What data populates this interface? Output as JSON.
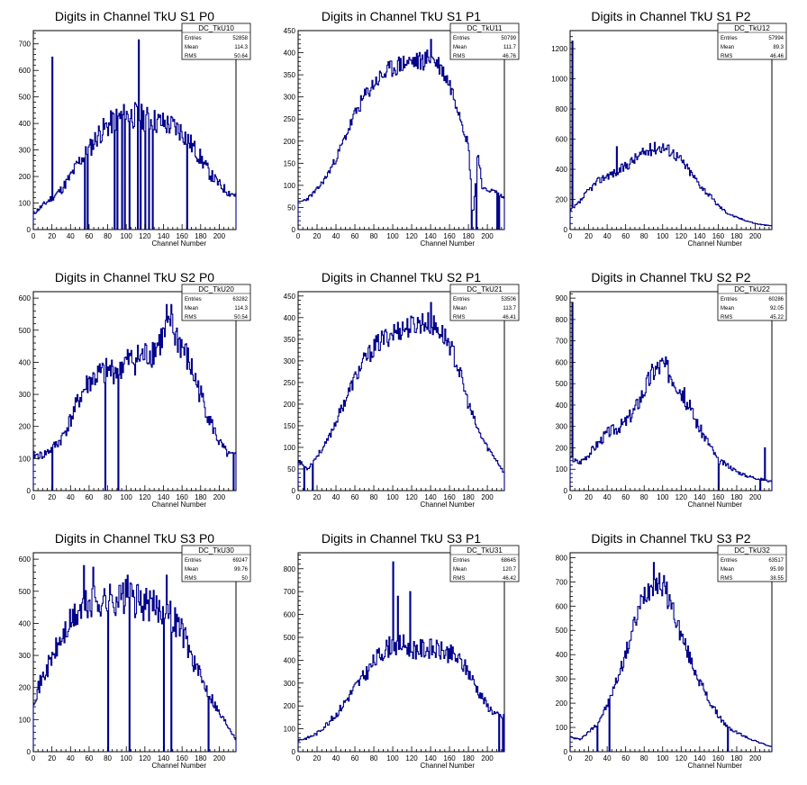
{
  "chart_data": [
    {
      "type": "histogram",
      "title": "Digits in Channel TkU S1 P0",
      "xlabel": "Channel Number",
      "ylabel": "",
      "xlim": [
        0,
        218
      ],
      "ylim": [
        0,
        750
      ],
      "xticks": [
        0,
        20,
        40,
        60,
        80,
        100,
        120,
        140,
        160,
        180,
        200
      ],
      "yticks": [
        100,
        200,
        300,
        400,
        500,
        600,
        700
      ],
      "stats": {
        "name": "DC_TkU10",
        "entries": "52858",
        "mean": "114.3",
        "rms": "50.64"
      },
      "anchors": [
        [
          0,
          60
        ],
        [
          10,
          90
        ],
        [
          20,
          120
        ],
        [
          30,
          150
        ],
        [
          40,
          200
        ],
        [
          50,
          260
        ],
        [
          60,
          300
        ],
        [
          70,
          360
        ],
        [
          80,
          390
        ],
        [
          90,
          420
        ],
        [
          100,
          430
        ],
        [
          110,
          430
        ],
        [
          120,
          420
        ],
        [
          130,
          410
        ],
        [
          140,
          400
        ],
        [
          150,
          390
        ],
        [
          160,
          370
        ],
        [
          170,
          320
        ],
        [
          180,
          270
        ],
        [
          190,
          210
        ],
        [
          200,
          170
        ],
        [
          210,
          140
        ],
        [
          218,
          130
        ]
      ],
      "spikes": [
        [
          20,
          650
        ],
        [
          113,
          715
        ]
      ],
      "dips": [
        [
          55,
          0
        ],
        [
          58,
          0
        ],
        [
          87,
          0
        ],
        [
          90,
          0
        ],
        [
          95,
          0
        ],
        [
          98,
          0
        ],
        [
          103,
          0
        ],
        [
          112,
          0
        ],
        [
          115,
          0
        ],
        [
          120,
          0
        ],
        [
          124,
          0
        ],
        [
          128,
          0
        ],
        [
          165,
          0
        ]
      ],
      "noise": 0.12,
      "seed": 11
    },
    {
      "type": "histogram",
      "title": "Digits in Channel TkU S1 P1",
      "xlabel": "Channel Number",
      "ylabel": "",
      "xlim": [
        0,
        218
      ],
      "ylim": [
        0,
        450
      ],
      "xticks": [
        0,
        20,
        40,
        60,
        80,
        100,
        120,
        140,
        160,
        180,
        200
      ],
      "yticks": [
        50,
        100,
        150,
        200,
        250,
        300,
        350,
        400,
        450
      ],
      "stats": {
        "name": "DC_TkU11",
        "entries": "50799",
        "mean": "111.7",
        "rms": "46.76"
      },
      "anchors": [
        [
          0,
          60
        ],
        [
          10,
          70
        ],
        [
          20,
          90
        ],
        [
          30,
          120
        ],
        [
          40,
          160
        ],
        [
          50,
          210
        ],
        [
          60,
          260
        ],
        [
          70,
          300
        ],
        [
          80,
          330
        ],
        [
          90,
          350
        ],
        [
          100,
          365
        ],
        [
          110,
          375
        ],
        [
          120,
          380
        ],
        [
          130,
          380
        ],
        [
          140,
          390
        ],
        [
          150,
          370
        ],
        [
          160,
          330
        ],
        [
          170,
          270
        ],
        [
          180,
          190
        ],
        [
          185,
          30
        ],
        [
          190,
          180
        ],
        [
          195,
          90
        ],
        [
          200,
          90
        ],
        [
          210,
          85
        ],
        [
          218,
          70
        ]
      ],
      "spikes": [
        [
          140,
          430
        ]
      ],
      "dips": [
        [
          183,
          0
        ],
        [
          188,
          0
        ],
        [
          210,
          0
        ],
        [
          212,
          0
        ]
      ],
      "noise": 0.06,
      "seed": 23
    },
    {
      "type": "histogram",
      "title": "Digits in Channel TkU S1 P2",
      "xlabel": "Channel Number",
      "ylabel": "",
      "xlim": [
        0,
        218
      ],
      "ylim": [
        0,
        1320
      ],
      "xticks": [
        0,
        20,
        40,
        60,
        80,
        100,
        120,
        140,
        160,
        180,
        200
      ],
      "yticks": [
        200,
        400,
        600,
        800,
        1000,
        1200
      ],
      "stats": {
        "name": "DC_TkU12",
        "entries": "57994",
        "mean": "89.3",
        "rms": "46.46"
      },
      "anchors": [
        [
          0,
          120
        ],
        [
          10,
          180
        ],
        [
          20,
          260
        ],
        [
          30,
          320
        ],
        [
          40,
          360
        ],
        [
          50,
          380
        ],
        [
          60,
          420
        ],
        [
          70,
          470
        ],
        [
          80,
          510
        ],
        [
          90,
          540
        ],
        [
          100,
          550
        ],
        [
          110,
          520
        ],
        [
          120,
          460
        ],
        [
          130,
          380
        ],
        [
          140,
          300
        ],
        [
          150,
          230
        ],
        [
          160,
          160
        ],
        [
          170,
          110
        ],
        [
          180,
          80
        ],
        [
          190,
          60
        ],
        [
          200,
          40
        ],
        [
          210,
          30
        ],
        [
          218,
          25
        ]
      ],
      "spikes": [
        [
          2,
          1250
        ],
        [
          50,
          550
        ]
      ],
      "dips": [],
      "noise": 0.08,
      "seed": 37
    },
    {
      "type": "histogram",
      "title": "Digits in Channel TkU S2 P0",
      "xlabel": "Channel Number",
      "ylabel": "",
      "xlim": [
        0,
        218
      ],
      "ylim": [
        0,
        620
      ],
      "xticks": [
        0,
        20,
        40,
        60,
        80,
        100,
        120,
        140,
        160,
        180,
        200
      ],
      "yticks": [
        100,
        200,
        300,
        400,
        500,
        600
      ],
      "stats": {
        "name": "DC_TkU20",
        "entries": "63282",
        "mean": "114.3",
        "rms": "50.54"
      },
      "anchors": [
        [
          0,
          110
        ],
        [
          10,
          110
        ],
        [
          20,
          130
        ],
        [
          30,
          160
        ],
        [
          40,
          220
        ],
        [
          50,
          290
        ],
        [
          60,
          340
        ],
        [
          70,
          360
        ],
        [
          80,
          370
        ],
        [
          90,
          380
        ],
        [
          100,
          400
        ],
        [
          110,
          410
        ],
        [
          120,
          420
        ],
        [
          130,
          440
        ],
        [
          140,
          480
        ],
        [
          150,
          500
        ],
        [
          160,
          450
        ],
        [
          170,
          380
        ],
        [
          180,
          300
        ],
        [
          190,
          220
        ],
        [
          200,
          150
        ],
        [
          210,
          110
        ],
        [
          218,
          110
        ]
      ],
      "spikes": [
        [
          143,
          580
        ],
        [
          148,
          580
        ],
        [
          218,
          250
        ]
      ],
      "dips": [
        [
          20,
          0
        ],
        [
          77,
          0
        ],
        [
          91,
          0
        ],
        [
          215,
          0
        ]
      ],
      "noise": 0.12,
      "seed": 41
    },
    {
      "type": "histogram",
      "title": "Digits in Channel TkU S2 P1",
      "xlabel": "Channel Number",
      "ylabel": "",
      "xlim": [
        0,
        218
      ],
      "ylim": [
        0,
        460
      ],
      "xticks": [
        0,
        20,
        40,
        60,
        80,
        100,
        120,
        140,
        160,
        180,
        200
      ],
      "yticks": [
        50,
        100,
        150,
        200,
        250,
        300,
        350,
        400,
        450
      ],
      "stats": {
        "name": "DC_TkU21",
        "entries": "53506",
        "mean": "113.7",
        "rms": "46.41"
      },
      "anchors": [
        [
          0,
          70
        ],
        [
          10,
          50
        ],
        [
          20,
          80
        ],
        [
          30,
          110
        ],
        [
          40,
          160
        ],
        [
          50,
          210
        ],
        [
          60,
          260
        ],
        [
          70,
          300
        ],
        [
          80,
          330
        ],
        [
          90,
          350
        ],
        [
          100,
          365
        ],
        [
          110,
          375
        ],
        [
          120,
          380
        ],
        [
          130,
          390
        ],
        [
          140,
          385
        ],
        [
          150,
          370
        ],
        [
          160,
          340
        ],
        [
          170,
          280
        ],
        [
          180,
          200
        ],
        [
          190,
          140
        ],
        [
          200,
          100
        ],
        [
          210,
          70
        ],
        [
          218,
          40
        ]
      ],
      "spikes": [
        [
          140,
          435
        ]
      ],
      "dips": [
        [
          6,
          0
        ],
        [
          15,
          0
        ]
      ],
      "noise": 0.07,
      "seed": 53
    },
    {
      "type": "histogram",
      "title": "Digits in Channel TkU S2 P2",
      "xlabel": "Channel Number",
      "ylabel": "",
      "xlim": [
        0,
        218
      ],
      "ylim": [
        0,
        930
      ],
      "xticks": [
        0,
        20,
        40,
        60,
        80,
        100,
        120,
        140,
        160,
        180,
        200
      ],
      "yticks": [
        100,
        200,
        300,
        400,
        500,
        600,
        700,
        800,
        900
      ],
      "stats": {
        "name": "DC_TkU22",
        "entries": "60286",
        "mean": "92.05",
        "rms": "45.22"
      },
      "anchors": [
        [
          0,
          150
        ],
        [
          10,
          130
        ],
        [
          20,
          170
        ],
        [
          30,
          220
        ],
        [
          40,
          270
        ],
        [
          50,
          290
        ],
        [
          60,
          320
        ],
        [
          70,
          380
        ],
        [
          80,
          470
        ],
        [
          90,
          560
        ],
        [
          100,
          590
        ],
        [
          110,
          540
        ],
        [
          120,
          470
        ],
        [
          130,
          380
        ],
        [
          140,
          290
        ],
        [
          150,
          220
        ],
        [
          160,
          140
        ],
        [
          170,
          120
        ],
        [
          180,
          90
        ],
        [
          190,
          70
        ],
        [
          200,
          60
        ],
        [
          210,
          50
        ],
        [
          218,
          40
        ]
      ],
      "spikes": [
        [
          2,
          880
        ],
        [
          210,
          200
        ]
      ],
      "dips": [
        [
          160,
          0
        ],
        [
          205,
          0
        ]
      ],
      "noise": 0.1,
      "seed": 67
    },
    {
      "type": "histogram",
      "title": "Digits in Channel TkU S3 P0",
      "xlabel": "Channel Number",
      "ylabel": "",
      "xlim": [
        0,
        218
      ],
      "ylim": [
        0,
        620
      ],
      "xticks": [
        0,
        20,
        40,
        60,
        80,
        100,
        120,
        140,
        160,
        180,
        200
      ],
      "yticks": [
        100,
        200,
        300,
        400,
        500,
        600
      ],
      "stats": {
        "name": "DC_TkU30",
        "entries": "69247",
        "mean": "99.76",
        "rms": "50"
      },
      "anchors": [
        [
          0,
          160
        ],
        [
          10,
          230
        ],
        [
          20,
          290
        ],
        [
          30,
          350
        ],
        [
          40,
          400
        ],
        [
          50,
          440
        ],
        [
          60,
          460
        ],
        [
          70,
          470
        ],
        [
          80,
          470
        ],
        [
          90,
          480
        ],
        [
          100,
          480
        ],
        [
          110,
          470
        ],
        [
          120,
          460
        ],
        [
          130,
          450
        ],
        [
          140,
          440
        ],
        [
          150,
          420
        ],
        [
          160,
          380
        ],
        [
          170,
          300
        ],
        [
          180,
          230
        ],
        [
          190,
          180
        ],
        [
          200,
          120
        ],
        [
          210,
          80
        ],
        [
          218,
          40
        ]
      ],
      "spikes": [
        [
          54,
          580
        ],
        [
          64,
          575
        ],
        [
          101,
          550
        ],
        [
          143,
          550
        ]
      ],
      "dips": [
        [
          80,
          0
        ],
        [
          103,
          0
        ],
        [
          140,
          0
        ],
        [
          148,
          0
        ],
        [
          188,
          0
        ]
      ],
      "noise": 0.12,
      "seed": 71
    },
    {
      "type": "histogram",
      "title": "Digits in Channel TkU S3 P1",
      "xlabel": "Channel Number",
      "ylabel": "",
      "xlim": [
        0,
        218
      ],
      "ylim": [
        0,
        870
      ],
      "xticks": [
        0,
        20,
        40,
        60,
        80,
        100,
        120,
        140,
        160,
        180,
        200
      ],
      "yticks": [
        100,
        200,
        300,
        400,
        500,
        600,
        700,
        800
      ],
      "stats": {
        "name": "DC_TkU31",
        "entries": "68645",
        "mean": "120.7",
        "rms": "46.42"
      },
      "anchors": [
        [
          0,
          50
        ],
        [
          10,
          60
        ],
        [
          20,
          80
        ],
        [
          30,
          120
        ],
        [
          40,
          160
        ],
        [
          50,
          220
        ],
        [
          60,
          280
        ],
        [
          70,
          330
        ],
        [
          80,
          390
        ],
        [
          90,
          440
        ],
        [
          100,
          470
        ],
        [
          110,
          470
        ],
        [
          120,
          450
        ],
        [
          130,
          450
        ],
        [
          140,
          450
        ],
        [
          150,
          440
        ],
        [
          160,
          430
        ],
        [
          170,
          400
        ],
        [
          180,
          350
        ],
        [
          190,
          270
        ],
        [
          200,
          200
        ],
        [
          210,
          160
        ],
        [
          218,
          150
        ]
      ],
      "spikes": [
        [
          100,
          830
        ],
        [
          105,
          680
        ],
        [
          118,
          700
        ]
      ],
      "dips": [
        [
          212,
          0
        ],
        [
          216,
          0
        ]
      ],
      "noise": 0.1,
      "seed": 83
    },
    {
      "type": "histogram",
      "title": "Digits in Channel TkU S3 P2",
      "xlabel": "Channel Number",
      "ylabel": "",
      "xlim": [
        0,
        218
      ],
      "ylim": [
        0,
        820
      ],
      "xticks": [
        0,
        20,
        40,
        60,
        80,
        100,
        120,
        140,
        160,
        180,
        200
      ],
      "yticks": [
        100,
        200,
        300,
        400,
        500,
        600,
        700,
        800
      ],
      "stats": {
        "name": "DC_TkU32",
        "entries": "63517",
        "mean": "95.99",
        "rms": "38.55"
      },
      "anchors": [
        [
          0,
          60
        ],
        [
          10,
          50
        ],
        [
          20,
          80
        ],
        [
          30,
          120
        ],
        [
          40,
          190
        ],
        [
          50,
          290
        ],
        [
          60,
          400
        ],
        [
          70,
          530
        ],
        [
          80,
          650
        ],
        [
          90,
          700
        ],
        [
          100,
          690
        ],
        [
          110,
          600
        ],
        [
          120,
          480
        ],
        [
          130,
          380
        ],
        [
          140,
          290
        ],
        [
          150,
          210
        ],
        [
          160,
          150
        ],
        [
          170,
          100
        ],
        [
          180,
          80
        ],
        [
          190,
          60
        ],
        [
          200,
          45
        ],
        [
          210,
          30
        ],
        [
          218,
          20
        ]
      ],
      "spikes": [
        [
          90,
          780
        ]
      ],
      "dips": [
        [
          29,
          0
        ],
        [
          42,
          0
        ],
        [
          170,
          0
        ]
      ],
      "noise": 0.08,
      "seed": 97
    }
  ],
  "stats_labels": {
    "entries": "Entries",
    "mean": "Mean",
    "rms": "RMS"
  }
}
